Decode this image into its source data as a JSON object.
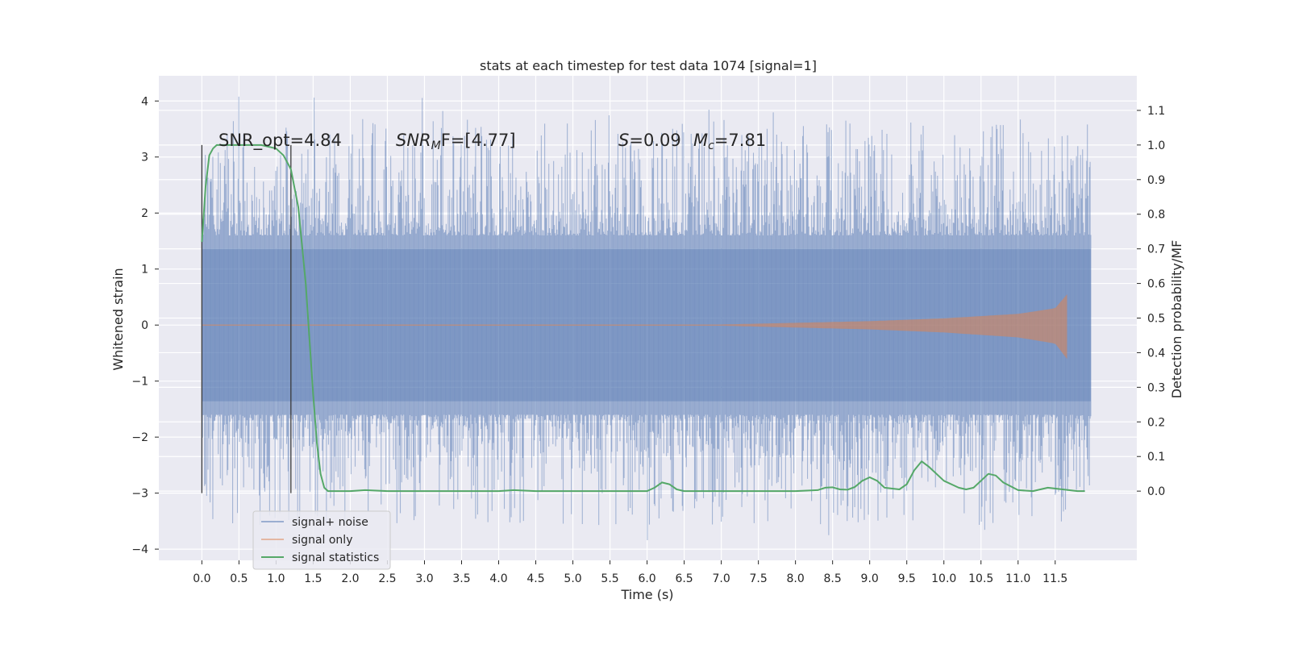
{
  "chart_data": {
    "type": "line",
    "title": "stats at each timestep for test data 1074 [signal=1]",
    "xlabel": "Time (s)",
    "ylabel_left": "Whitened strain",
    "ylabel_right": "Detection probability/MF",
    "xlim": [
      -0.58,
      12.6
    ],
    "ylim_left": [
      -4.2,
      4.45
    ],
    "ylim_right": [
      -0.2,
      1.2
    ],
    "xticks": [
      "0.0",
      "0.5",
      "1.0",
      "1.5",
      "2.0",
      "2.5",
      "3.0",
      "3.5",
      "4.0",
      "4.5",
      "5.0",
      "5.5",
      "6.0",
      "6.5",
      "7.0",
      "7.5",
      "8.0",
      "8.5",
      "9.0",
      "9.5",
      "10.0",
      "10.5",
      "11.0",
      "11.5"
    ],
    "yticks_left": [
      "4",
      "3",
      "2",
      "1",
      "0",
      "−1",
      "−2",
      "−3",
      "−4"
    ],
    "yticks_right": [
      "1.1",
      "1.0",
      "0.9",
      "0.8",
      "0.7",
      "0.6",
      "0.5",
      "0.4",
      "0.3",
      "0.2",
      "0.1",
      "0.0"
    ],
    "grid": true,
    "legend_position": "lower-left",
    "annotations": {
      "snr_opt": "SNR_opt=4.84",
      "snr_mf_base": "SNR",
      "snr_mf_sub": "M",
      "snr_mf_rest": "F=[4.77]",
      "s_label": "S",
      "s_value": "=0.09",
      "mc_base": "M",
      "mc_sub": "c",
      "mc_value": "=7.81"
    },
    "vertical_markers": [
      0.0,
      1.2
    ],
    "noise_envelope": {
      "t_start": 0.0,
      "t_end": 11.98,
      "typical_abs": 1.6,
      "max": 4.1,
      "min": -3.85
    },
    "signal_only": {
      "t_start": 7.0,
      "t_end": 11.66,
      "amplitude": [
        [
          7.0,
          0.01
        ],
        [
          8.0,
          0.04
        ],
        [
          9.0,
          0.07
        ],
        [
          10.0,
          0.12
        ],
        [
          11.0,
          0.2
        ],
        [
          11.5,
          0.3
        ],
        [
          11.66,
          0.55
        ]
      ]
    },
    "series": [
      {
        "name": "signal+ noise",
        "color": "#4c72b0"
      },
      {
        "name": "signal only",
        "color": "#dd8452"
      },
      {
        "name": "signal statistics",
        "color": "#55a868",
        "x": [
          0.0,
          0.05,
          0.1,
          0.15,
          0.2,
          0.3,
          0.5,
          0.8,
          1.0,
          1.1,
          1.2,
          1.3,
          1.4,
          1.5,
          1.55,
          1.6,
          1.65,
          1.7,
          1.8,
          1.9,
          2.0,
          2.2,
          2.5,
          3.0,
          4.0,
          4.2,
          4.5,
          5.0,
          5.5,
          6.0,
          6.1,
          6.2,
          6.3,
          6.4,
          6.5,
          7.0,
          8.0,
          8.3,
          8.4,
          8.5,
          8.6,
          8.7,
          8.8,
          8.9,
          9.0,
          9.1,
          9.2,
          9.4,
          9.5,
          9.6,
          9.7,
          9.8,
          10.0,
          10.2,
          10.3,
          10.4,
          10.5,
          10.6,
          10.7,
          10.8,
          11.0,
          11.2,
          11.4,
          11.6,
          11.8,
          11.9
        ],
        "y": [
          0.72,
          0.88,
          0.97,
          0.99,
          1.0,
          1.0,
          1.0,
          1.0,
          0.99,
          0.97,
          0.93,
          0.82,
          0.6,
          0.28,
          0.14,
          0.05,
          0.01,
          0.0,
          0.0,
          0.0,
          0.0,
          0.003,
          0.0,
          0.0,
          0.0,
          0.003,
          0.0,
          0.0,
          0.0,
          0.0,
          0.01,
          0.025,
          0.02,
          0.005,
          0.0,
          0.0,
          0.0,
          0.003,
          0.01,
          0.011,
          0.005,
          0.004,
          0.012,
          0.03,
          0.04,
          0.03,
          0.01,
          0.005,
          0.02,
          0.06,
          0.086,
          0.07,
          0.03,
          0.01,
          0.005,
          0.01,
          0.03,
          0.05,
          0.045,
          0.025,
          0.003,
          0.0,
          0.01,
          0.005,
          0.0,
          0.0
        ]
      }
    ]
  }
}
